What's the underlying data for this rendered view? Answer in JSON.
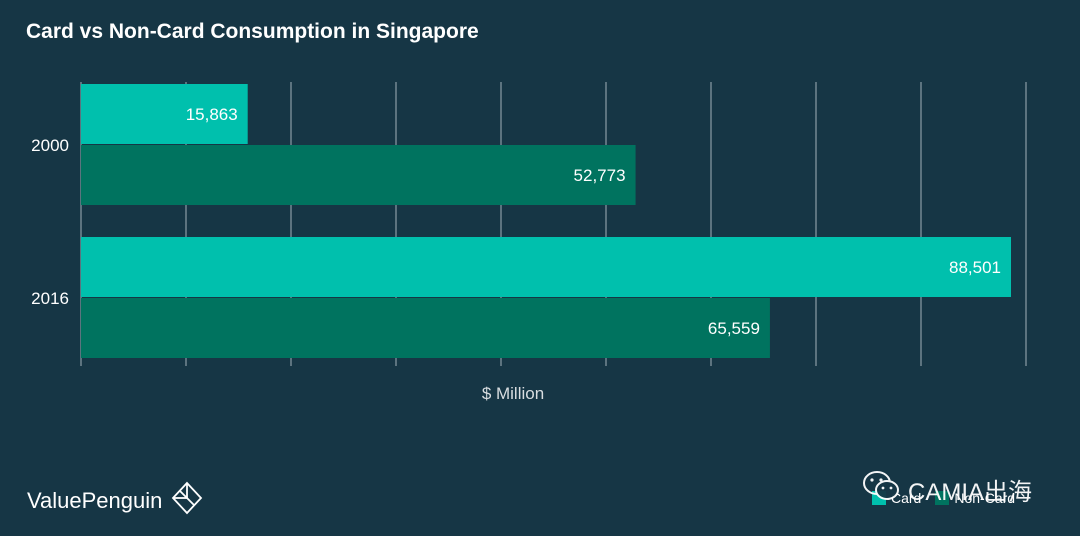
{
  "chart_data": {
    "type": "bar",
    "orientation": "horizontal",
    "title": "Card vs Non-Card Consumption in Singapore",
    "xlabel": "$ Million",
    "ylabel": "",
    "categories": [
      "2000",
      "2016"
    ],
    "series": [
      {
        "name": "Card",
        "values": [
          15863,
          88501
        ],
        "labels": [
          "15,863",
          "88,501"
        ],
        "color": "#00c0ad"
      },
      {
        "name": "Non-Card",
        "values": [
          52773,
          65559
        ],
        "labels": [
          "52,773",
          "65,559"
        ],
        "color": "#00735f"
      }
    ],
    "xlim": [
      0,
      90000
    ],
    "grid": true,
    "legend_position": "bottom-right"
  },
  "brand": {
    "name": "ValuePenguin",
    "icon": "valuepenguin-logo-icon"
  },
  "watermark": {
    "text": "CAMIA出海",
    "icon": "wechat-icon"
  },
  "colors": {
    "background": "#163645",
    "grid": "#8a9ca6"
  }
}
